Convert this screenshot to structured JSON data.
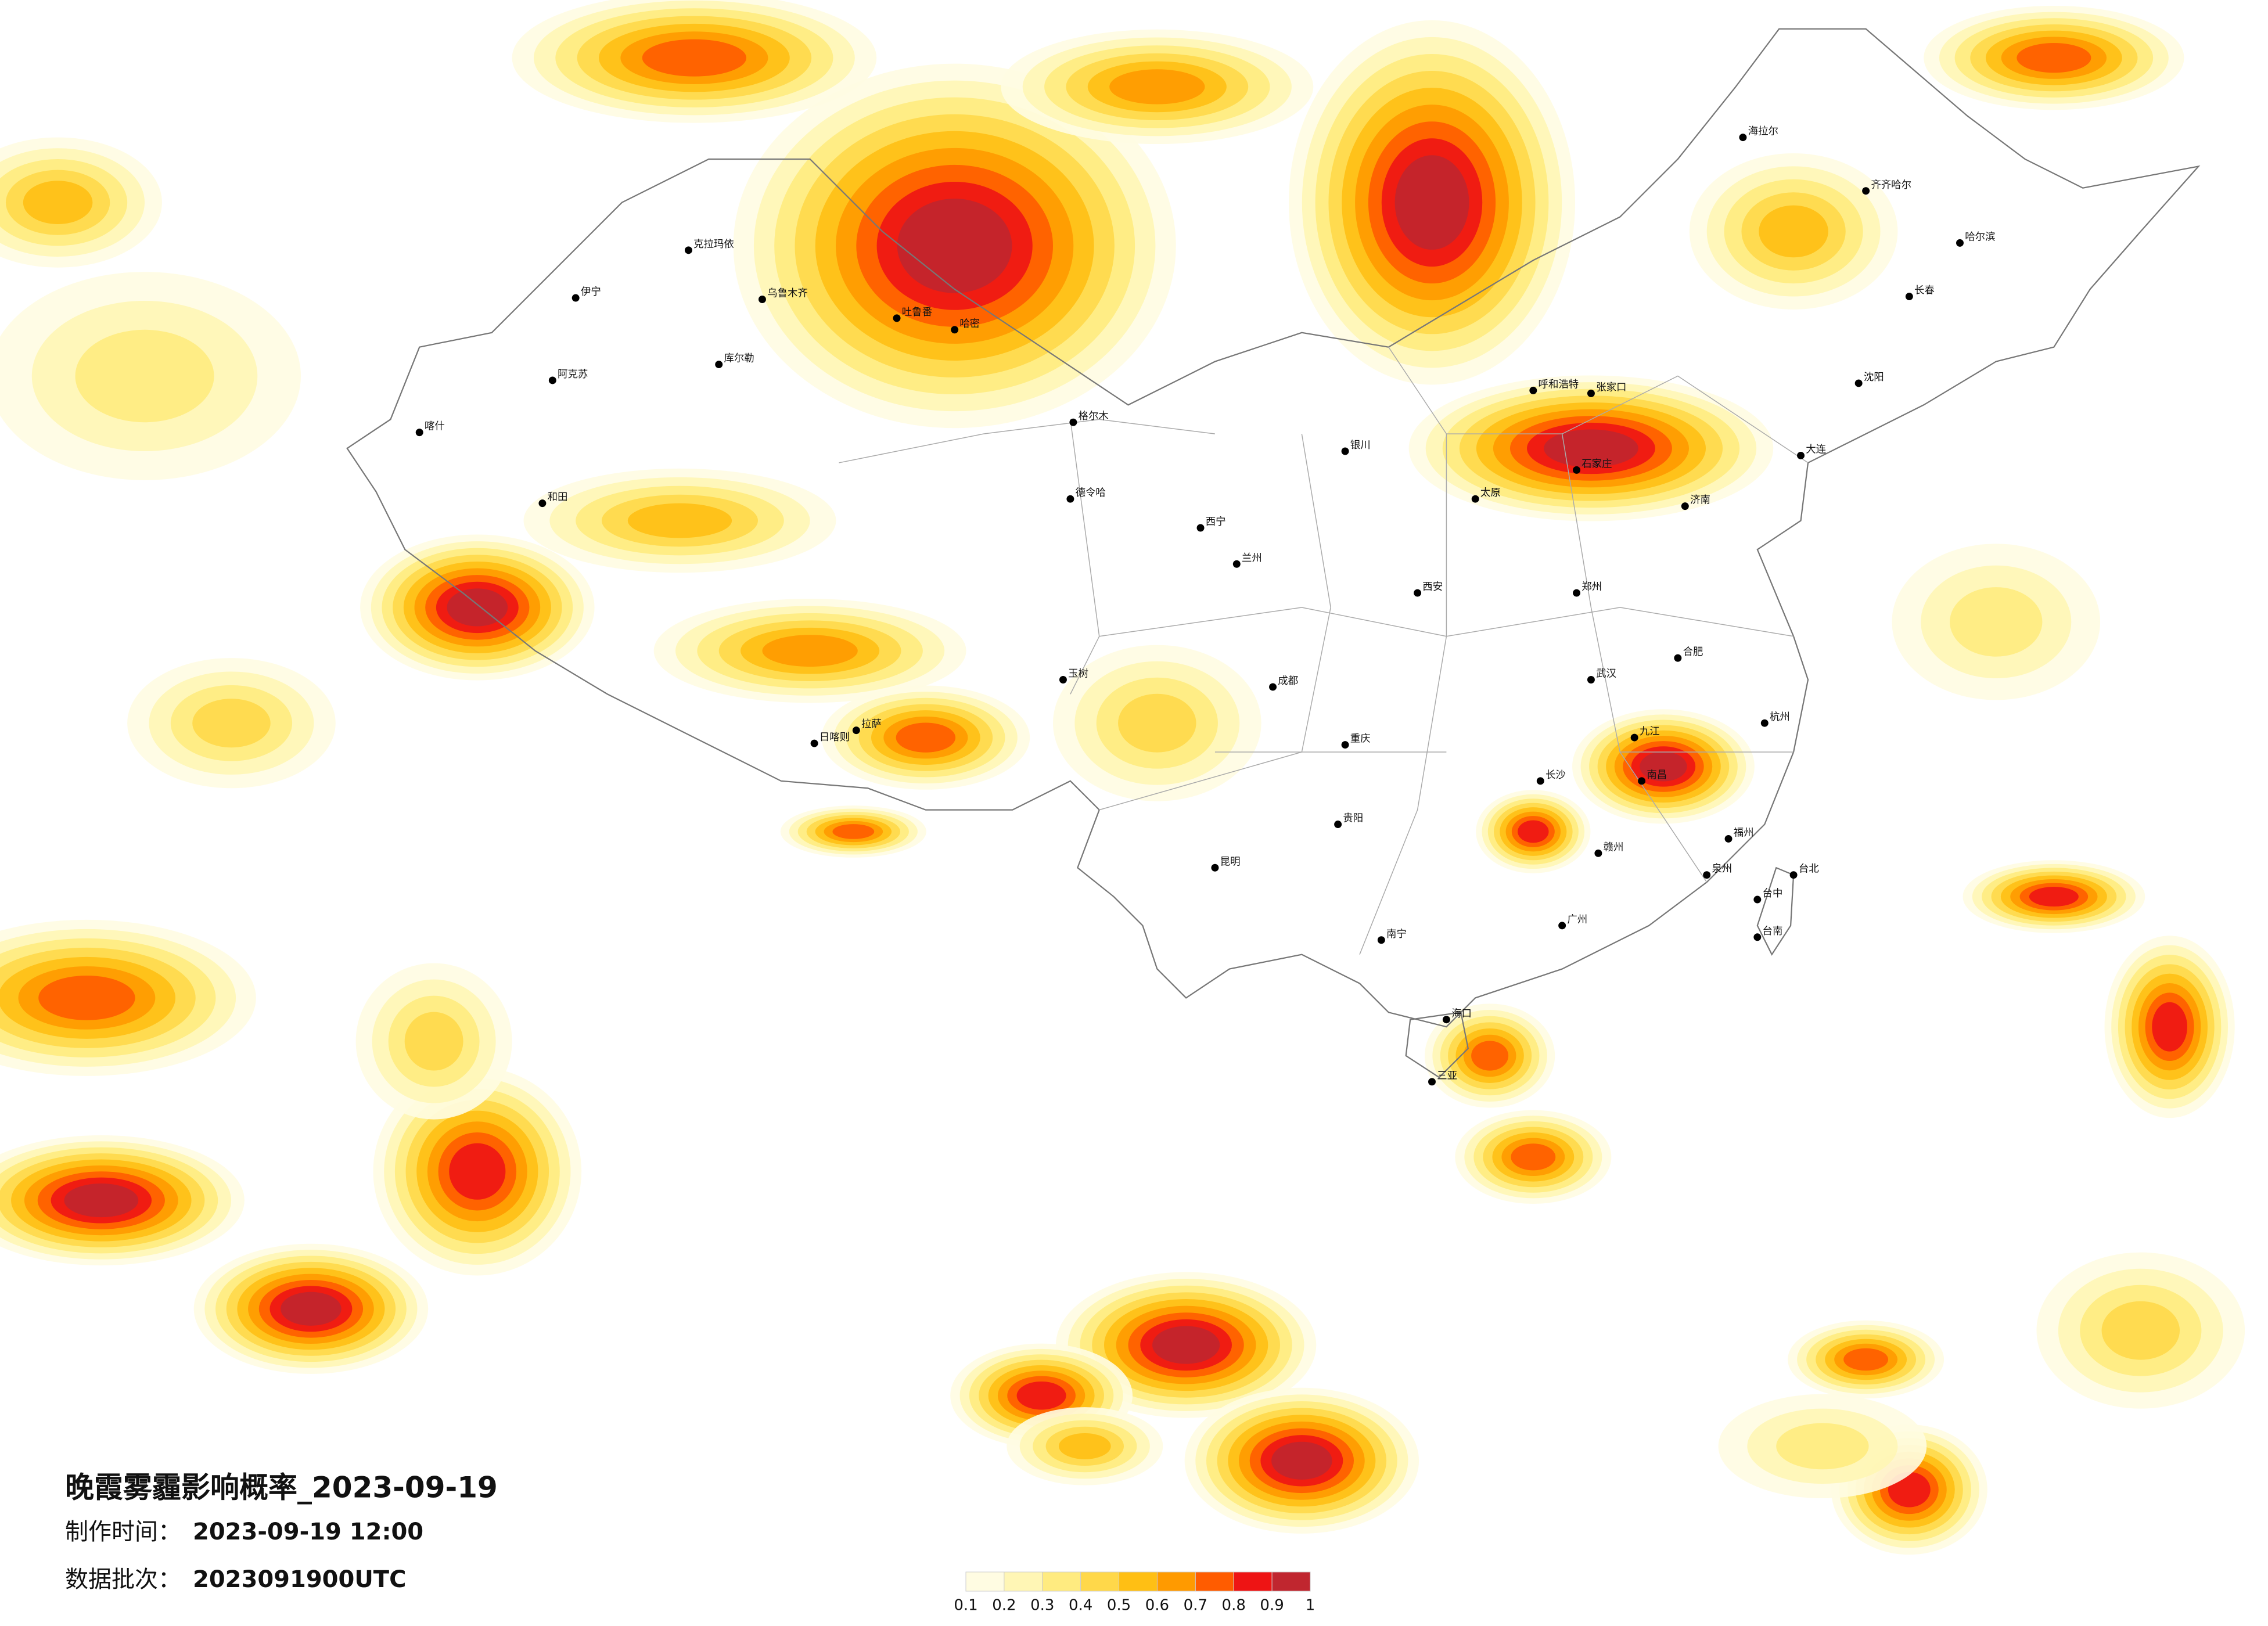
{
  "header": {
    "title": "晚霞雾霾影响概率_2023-09-19"
  },
  "info": [
    {
      "label": "制作时间：",
      "value": "2023-09-19 12:00"
    },
    {
      "label": "数据批次：",
      "value": "2023091900UTC"
    }
  ],
  "legend": {
    "ticks": [
      0.1,
      0.2,
      0.3,
      0.4,
      0.5,
      0.6,
      0.7,
      0.8,
      0.9,
      1
    ],
    "colors": [
      "#fffce2",
      "#fff6b5",
      "#ffeb80",
      "#ffd84a",
      "#ffbf14",
      "#ff9a00",
      "#ff5c00",
      "#ee1414",
      "#c0262f"
    ]
  },
  "cities": [
    "克拉玛依",
    "乌鲁木齐",
    "伊宁",
    "阿克苏",
    "和田",
    "喀什",
    "库尔勒",
    "哈密",
    "吐鲁番",
    "格尔木",
    "拉萨",
    "日喀则",
    "西宁",
    "兰州",
    "银川",
    "呼和浩特",
    "海拉尔",
    "齐齐哈尔",
    "哈尔滨",
    "长春",
    "沈阳",
    "大连",
    "张家口",
    "石家庄",
    "太原",
    "济南",
    "郑州",
    "西安",
    "成都",
    "重庆",
    "贵阳",
    "昆明",
    "南宁",
    "海口",
    "广州",
    "福州",
    "南昌",
    "长沙",
    "武汉",
    "合肥",
    "杭州",
    "台北",
    "三亚",
    "德令哈",
    "玉树",
    "九江",
    "赣州",
    "泉州",
    "台中",
    "台南"
  ]
}
